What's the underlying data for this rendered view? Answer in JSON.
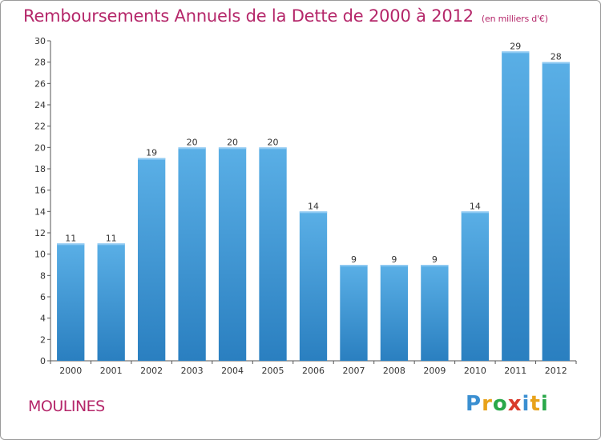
{
  "title": "Remboursements Annuels de la Dette de 2000 à 2012",
  "subtitle": "(en milliers d'€)",
  "commune": "MOULINES",
  "brand": {
    "letters": [
      "P",
      "r",
      "o",
      "x",
      "i",
      "t",
      "i"
    ],
    "colors": [
      "#3a8fd1",
      "#e8a21a",
      "#2aa84a",
      "#d93a2b",
      "#3a8fd1",
      "#e8a21a",
      "#2aa84a"
    ]
  },
  "colors": {
    "bar_top": "#5aafe6",
    "bar_bottom": "#2a7fc0",
    "title": "#b5276a"
  },
  "chart_data": {
    "type": "bar",
    "categories": [
      "2000",
      "2001",
      "2002",
      "2003",
      "2004",
      "2005",
      "2006",
      "2007",
      "2008",
      "2009",
      "2010",
      "2011",
      "2012"
    ],
    "values": [
      11,
      11,
      19,
      20,
      20,
      20,
      14,
      9,
      9,
      9,
      14,
      29,
      28
    ],
    "ylim": [
      0,
      30
    ],
    "yticks": [
      0,
      2,
      4,
      6,
      8,
      10,
      12,
      14,
      16,
      18,
      20,
      22,
      24,
      26,
      28,
      30
    ],
    "grid": false,
    "legend": "none"
  }
}
